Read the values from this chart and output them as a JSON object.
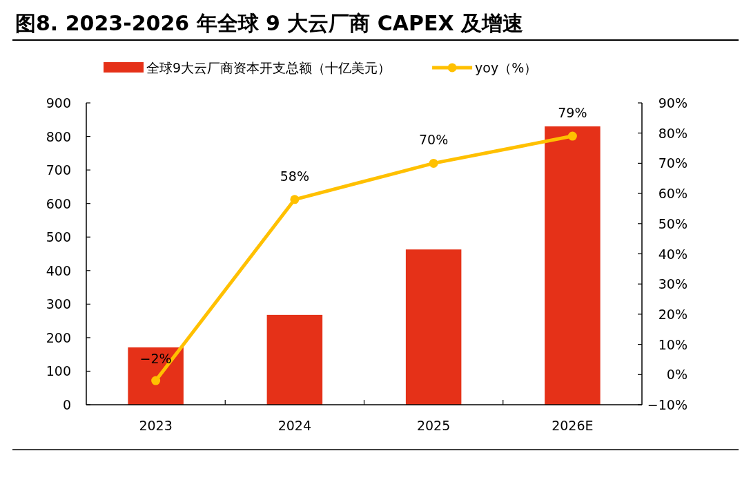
{
  "chart_data": {
    "type": "bar",
    "title": "图8. 2023-2026 年全球 9 大云厂商 CAPEX 及增速",
    "categories": [
      "2023",
      "2024",
      "2025",
      "2026E"
    ],
    "series": [
      {
        "name": "全球9大云厂商资本开支总额（十亿美元）",
        "color": "#e53118",
        "values": [
          171,
          268,
          463,
          830
        ]
      },
      {
        "name": "yoy（%）",
        "type": "line",
        "axis": "y2",
        "color": "#ffc000",
        "marker": "circle",
        "values": [
          -2,
          58,
          70,
          79
        ],
        "value_labels": [
          "−2%",
          "58%",
          "70%",
          "79%"
        ]
      }
    ],
    "ylim": [
      0,
      900
    ],
    "yticks": [
      0,
      100,
      200,
      300,
      400,
      500,
      600,
      700,
      800,
      900
    ],
    "y2lim": [
      -10,
      90
    ],
    "y2ticks": [
      {
        "value": -10,
        "label": "−10%"
      },
      {
        "value": 0,
        "label": "0%"
      },
      {
        "value": 10,
        "label": "10%"
      },
      {
        "value": 20,
        "label": "20%"
      },
      {
        "value": 30,
        "label": "30%"
      },
      {
        "value": 40,
        "label": "40%"
      },
      {
        "value": 50,
        "label": "50%"
      },
      {
        "value": 60,
        "label": "60%"
      },
      {
        "value": 70,
        "label": "70%"
      },
      {
        "value": 80,
        "label": "80%"
      },
      {
        "value": 90,
        "label": "90%"
      }
    ],
    "legend": "top"
  }
}
